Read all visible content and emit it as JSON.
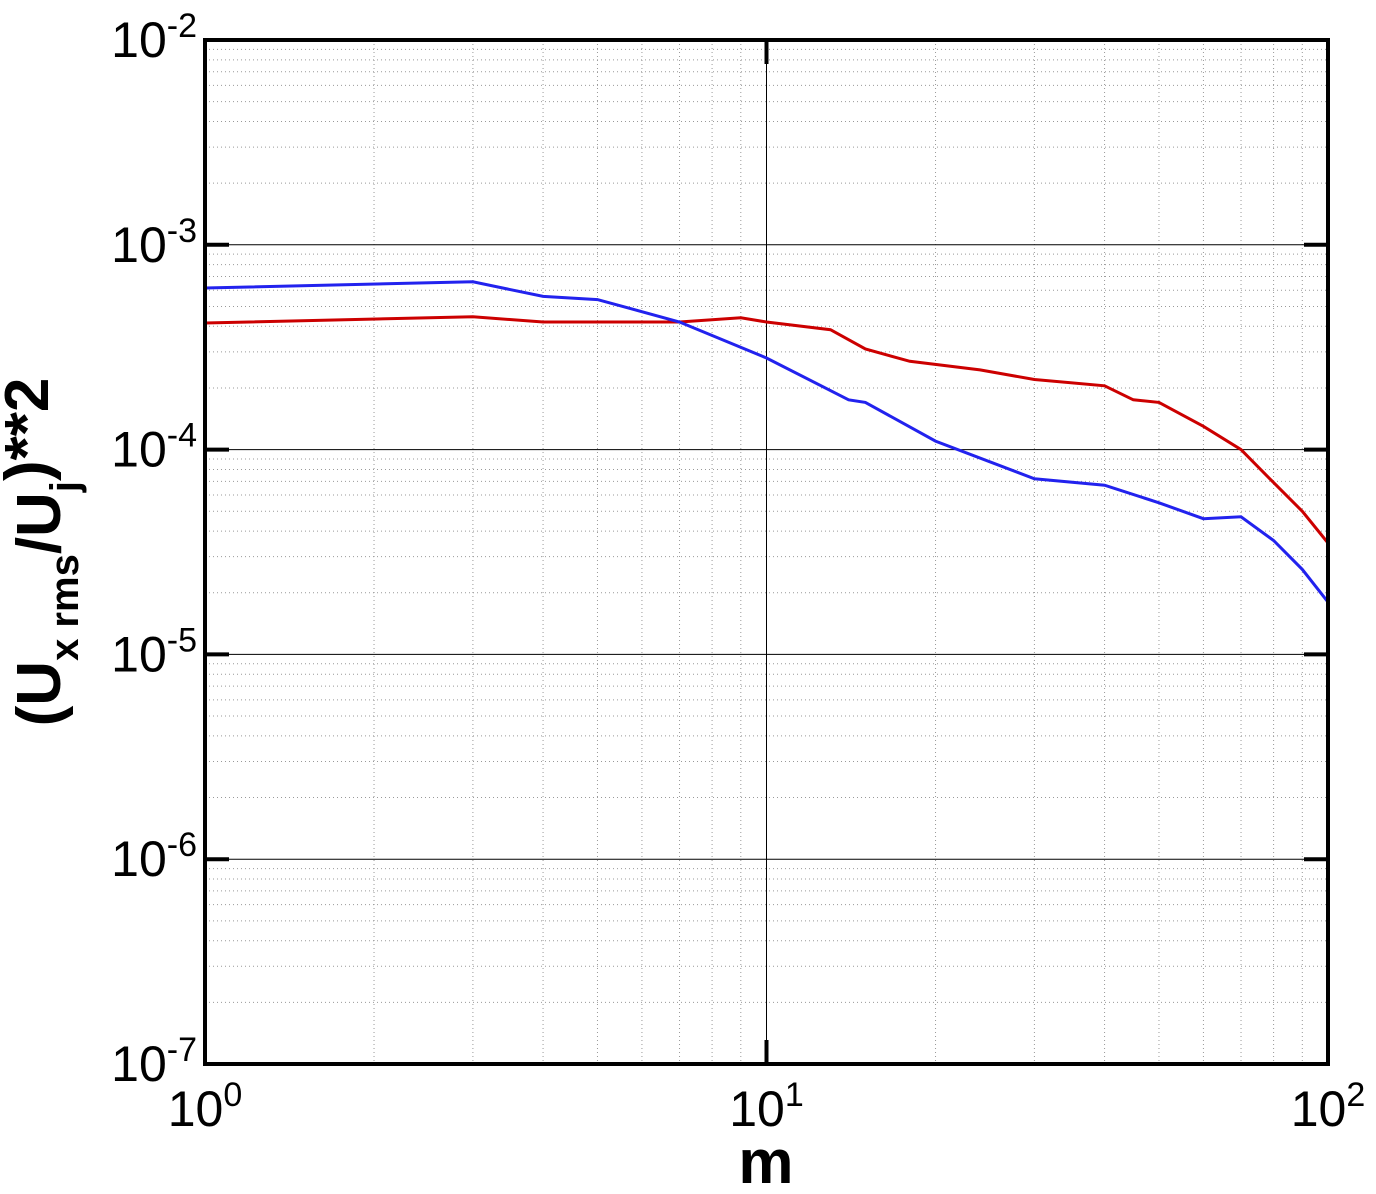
{
  "chart_data": {
    "type": "line",
    "x_label": "m",
    "y_label": [
      "(U",
      "x rms",
      "/U",
      "j",
      ")**2"
    ],
    "log_x": true,
    "log_y": true,
    "grid": true,
    "minor_grid": true,
    "xlim": [
      1,
      100
    ],
    "ylim": [
      1e-07,
      0.01
    ],
    "xticks": [
      {
        "value": 1,
        "label": "10^0"
      },
      {
        "value": 10,
        "label": "10^1"
      },
      {
        "value": 100,
        "label": "10^2"
      }
    ],
    "yticks": [
      {
        "value": 1e-07,
        "label": "10^-7"
      },
      {
        "value": 1e-06,
        "label": "10^-6"
      },
      {
        "value": 1e-05,
        "label": "10^-5"
      },
      {
        "value": 0.0001,
        "label": "10^-4"
      },
      {
        "value": 0.001,
        "label": "10^-3"
      },
      {
        "value": 0.01,
        "label": "10^-2"
      }
    ],
    "x_minor_ticks": [
      2,
      3,
      4,
      5,
      6,
      7,
      8,
      9,
      20,
      30,
      40,
      50,
      60,
      70,
      80,
      90
    ],
    "y_minor_ticks": [
      2e-07,
      3e-07,
      4e-07,
      5e-07,
      6e-07,
      7e-07,
      8e-07,
      9e-07,
      2e-06,
      3e-06,
      4e-06,
      5e-06,
      6e-06,
      7e-06,
      8e-06,
      9e-06,
      2e-05,
      3e-05,
      4e-05,
      5e-05,
      6e-05,
      7e-05,
      8e-05,
      9e-05,
      0.0002,
      0.0003,
      0.0004,
      0.0005,
      0.0006,
      0.0007,
      0.0008,
      0.0009,
      0.002,
      0.003,
      0.004,
      0.005,
      0.006,
      0.007,
      0.008,
      0.009
    ],
    "series": [
      {
        "color": "#cc0000",
        "x": [
          1,
          3,
          4,
          7,
          9,
          10,
          13,
          15,
          18,
          24,
          30,
          40,
          45,
          50,
          60,
          70,
          80,
          90,
          100
        ],
        "values": [
          0.000415,
          0.000445,
          0.00042,
          0.00042,
          0.00044,
          0.00042,
          0.000385,
          0.00031,
          0.00027,
          0.000245,
          0.00022,
          0.000205,
          0.000175,
          0.00017,
          0.00013,
          0.0001,
          6.9e-05,
          5e-05,
          3.5e-05
        ]
      },
      {
        "color": "#2222ee",
        "x": [
          1,
          3,
          4,
          5,
          7,
          10,
          14,
          15,
          20,
          30,
          40,
          50,
          60,
          70,
          80,
          90,
          100
        ],
        "values": [
          0.000615,
          0.00066,
          0.00056,
          0.00054,
          0.00042,
          0.00028,
          0.000175,
          0.00017,
          0.00011,
          7.2e-05,
          6.7e-05,
          5.5e-05,
          4.6e-05,
          4.7e-05,
          3.6e-05,
          2.6e-05,
          1.8e-05
        ]
      }
    ]
  }
}
